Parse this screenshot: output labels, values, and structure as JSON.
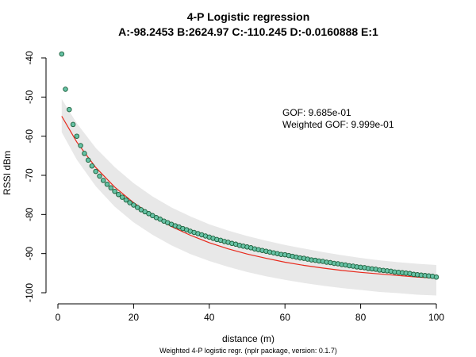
{
  "chart_data": {
    "type": "scatter",
    "title": "4-P Logistic regression",
    "subtitle": "A:-98.2453   B:2624.97   C:-110.245   D:-0.0160888   E:1",
    "xlabel": "distance (m)",
    "ylabel": "RSSI dBm",
    "footnote": "Weighted 4-P logistic regr. (nplr package, version: 0.1.7)",
    "annotations": [
      "GOF: 9.685e-01",
      "Weighted GOF: 9.999e-01"
    ],
    "xlim": [
      0,
      100
    ],
    "ylim": [
      -100,
      -40
    ],
    "xticks": [
      0,
      20,
      40,
      60,
      80,
      100
    ],
    "yticks": [
      -100,
      -90,
      -80,
      -70,
      -60,
      -50,
      -40
    ],
    "grid": false,
    "points_x_range": [
      1,
      100
    ],
    "series": [
      {
        "kind": "points",
        "color": "#66c2a5",
        "edge_color": "#1b5e3a",
        "x": [
          1,
          2,
          3,
          4,
          5,
          6,
          7,
          8,
          9,
          10,
          11,
          12,
          13,
          14,
          15,
          16,
          17,
          18,
          19,
          20,
          21,
          22,
          23,
          24,
          25,
          26,
          27,
          28,
          29,
          30,
          31,
          32,
          33,
          34,
          35,
          36,
          37,
          38,
          39,
          40,
          41,
          42,
          43,
          44,
          45,
          46,
          47,
          48,
          49,
          50,
          51,
          52,
          53,
          54,
          55,
          56,
          57,
          58,
          59,
          60,
          61,
          62,
          63,
          64,
          65,
          66,
          67,
          68,
          69,
          70,
          71,
          72,
          73,
          74,
          75,
          76,
          77,
          78,
          79,
          80,
          81,
          82,
          83,
          84,
          85,
          86,
          87,
          88,
          89,
          90,
          91,
          92,
          93,
          94,
          95,
          96,
          97,
          98,
          99,
          100
        ],
        "y": [
          -39.0,
          -48.0,
          -53.2,
          -57.0,
          -60.0,
          -62.4,
          -64.4,
          -66.1,
          -67.6,
          -69.0,
          -70.2,
          -71.3,
          -72.3,
          -73.2,
          -74.1,
          -74.9,
          -75.6,
          -76.3,
          -77.0,
          -77.6,
          -78.2,
          -78.8,
          -79.3,
          -79.8,
          -80.3,
          -80.8,
          -81.2,
          -81.7,
          -82.1,
          -82.5,
          -82.9,
          -83.2,
          -83.6,
          -83.9,
          -84.3,
          -84.6,
          -84.9,
          -85.2,
          -85.5,
          -85.8,
          -86.1,
          -86.4,
          -86.6,
          -86.9,
          -87.1,
          -87.4,
          -87.6,
          -87.9,
          -88.1,
          -88.3,
          -88.5,
          -88.8,
          -89.0,
          -89.2,
          -89.4,
          -89.6,
          -89.8,
          -90.0,
          -90.2,
          -90.3,
          -90.5,
          -90.7,
          -90.9,
          -91.1,
          -91.2,
          -91.4,
          -91.6,
          -91.7,
          -91.9,
          -92.0,
          -92.2,
          -92.3,
          -92.5,
          -92.6,
          -92.8,
          -92.9,
          -93.1,
          -93.2,
          -93.4,
          -93.5,
          -93.6,
          -93.8,
          -93.9,
          -94.0,
          -94.2,
          -94.3,
          -94.4,
          -94.5,
          -94.7,
          -94.8,
          -94.9,
          -95.0,
          -95.1,
          -95.3,
          -95.4,
          -95.5,
          -95.6,
          -95.7,
          -95.8,
          -96.0
        ]
      },
      {
        "kind": "fitted-curve",
        "color": "#e8291c",
        "x": [
          1,
          5,
          10,
          15,
          20,
          25,
          30,
          35,
          40,
          45,
          50,
          55,
          60,
          65,
          70,
          75,
          80,
          85,
          90,
          95,
          100
        ],
        "y": [
          -54.9,
          -61.5,
          -68.0,
          -73.0,
          -77.0,
          -80.3,
          -83.1,
          -85.3,
          -87.2,
          -88.8,
          -90.1,
          -91.2,
          -92.2,
          -93.0,
          -93.7,
          -94.3,
          -94.8,
          -95.2,
          -95.6,
          -96.0,
          -96.3
        ]
      },
      {
        "kind": "confidence-band",
        "color": "#e8e8e8",
        "x": [
          1,
          5,
          10,
          15,
          20,
          25,
          30,
          35,
          40,
          45,
          50,
          55,
          60,
          65,
          70,
          75,
          80,
          85,
          90,
          95,
          100
        ],
        "upper": [
          -50.5,
          -56.7,
          -63.0,
          -67.9,
          -72.0,
          -75.4,
          -78.2,
          -80.5,
          -82.5,
          -84.1,
          -85.5,
          -86.7,
          -87.8,
          -88.7,
          -89.6,
          -90.4,
          -91.1,
          -91.7,
          -92.2,
          -92.6,
          -92.9
        ],
        "lower": [
          -59.0,
          -66.0,
          -72.8,
          -78.0,
          -82.0,
          -85.2,
          -87.9,
          -90.1,
          -91.9,
          -93.4,
          -94.7,
          -95.8,
          -96.7,
          -97.5,
          -98.2,
          -98.8,
          -99.3,
          -99.8,
          -100.1,
          -100.5,
          -100.7
        ]
      }
    ]
  }
}
